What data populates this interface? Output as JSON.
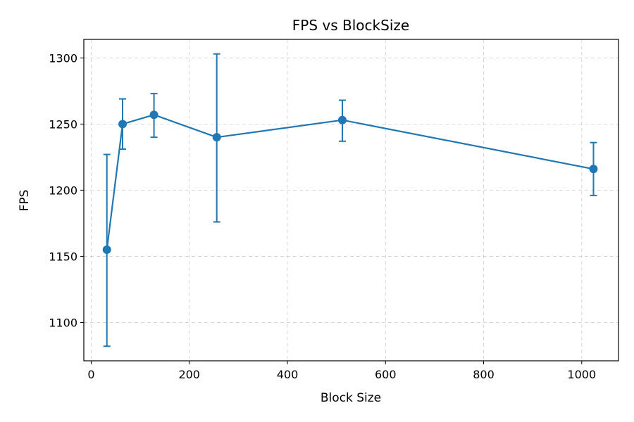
{
  "chart_data": {
    "type": "line",
    "title": "FPS vs BlockSize",
    "xlabel": "Block Size",
    "ylabel": "FPS",
    "xlim": [
      -15,
      1075
    ],
    "ylim": [
      1071,
      1314
    ],
    "xticks": [
      0,
      200,
      400,
      600,
      800,
      1000
    ],
    "yticks": [
      1100,
      1150,
      1200,
      1250,
      1300
    ],
    "grid": true,
    "legend": "none",
    "series": [
      {
        "color": "#1f77b4",
        "marker": "circle",
        "error_bars": true,
        "points": [
          {
            "x": 32,
            "y": 1155,
            "err_low": 1082,
            "err_high": 1227
          },
          {
            "x": 64,
            "y": 1250,
            "err_low": 1231,
            "err_high": 1269
          },
          {
            "x": 128,
            "y": 1257,
            "err_low": 1240,
            "err_high": 1273
          },
          {
            "x": 256,
            "y": 1240,
            "err_low": 1176,
            "err_high": 1303
          },
          {
            "x": 512,
            "y": 1253,
            "err_low": 1237,
            "err_high": 1268
          },
          {
            "x": 1024,
            "y": 1216,
            "err_low": 1196,
            "err_high": 1236
          }
        ]
      }
    ]
  }
}
